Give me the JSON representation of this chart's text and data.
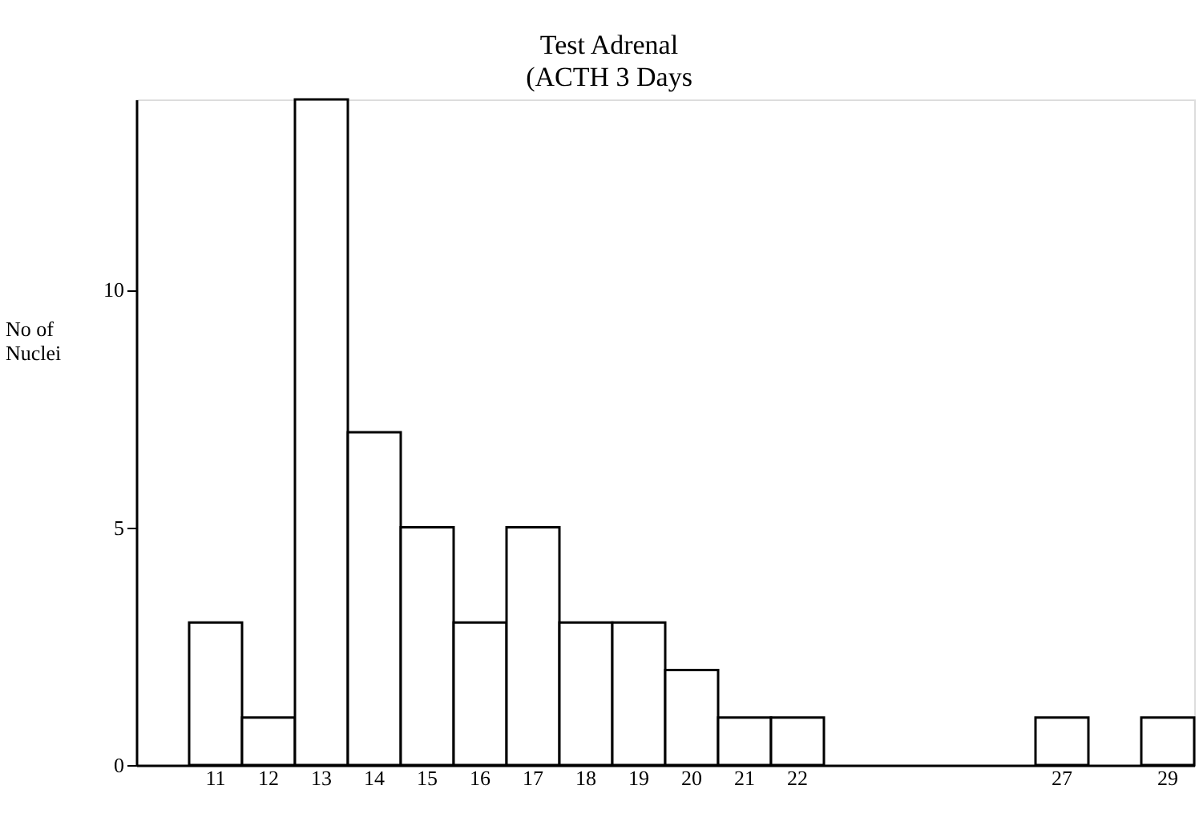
{
  "chart_data": {
    "type": "bar",
    "title": "Test Adrenal",
    "subtitle": "(ACTH 3 Days",
    "ylabel": "No of Nuclei",
    "categories": [
      "11",
      "12",
      "13",
      "14",
      "15",
      "16",
      "17",
      "18",
      "19",
      "20",
      "21",
      "22",
      null,
      null,
      null,
      null,
      "27",
      null,
      "29"
    ],
    "values": [
      3,
      1,
      14,
      7,
      5,
      3,
      5,
      3,
      3,
      2,
      1,
      1,
      null,
      null,
      null,
      null,
      1,
      null,
      1
    ],
    "color": "#ffffff",
    "ylim": [
      0,
      14
    ],
    "yticks": [
      0,
      5,
      10
    ],
    "grid": false
  }
}
